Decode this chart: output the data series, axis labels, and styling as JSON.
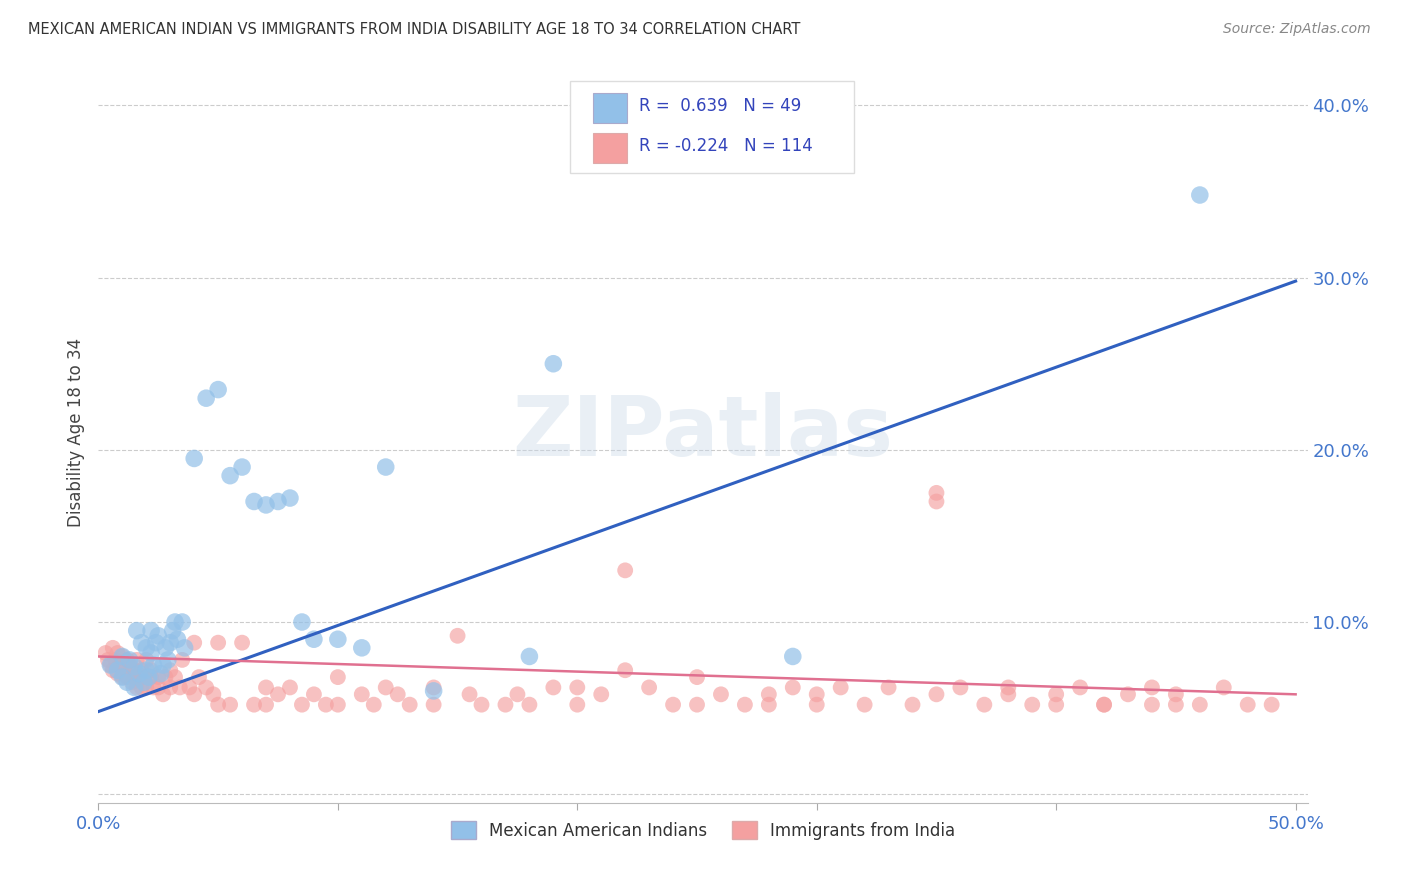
{
  "title": "MEXICAN AMERICAN INDIAN VS IMMIGRANTS FROM INDIA DISABILITY AGE 18 TO 34 CORRELATION CHART",
  "source": "Source: ZipAtlas.com",
  "ylabel": "Disability Age 18 to 34",
  "xlim": [
    0.0,
    0.505
  ],
  "ylim": [
    -0.005,
    0.425
  ],
  "xticks": [
    0.0,
    0.1,
    0.2,
    0.3,
    0.4,
    0.5
  ],
  "yticks": [
    0.0,
    0.1,
    0.2,
    0.3,
    0.4
  ],
  "ytick_labels_right": [
    "",
    "10.0%",
    "20.0%",
    "30.0%",
    "40.0%"
  ],
  "legend_labels": [
    "Mexican American Indians",
    "Immigrants from India"
  ],
  "blue_R": "0.639",
  "blue_N": "49",
  "pink_R": "-0.224",
  "pink_N": "114",
  "blue_color": "#92c0e8",
  "pink_color": "#f4a0a0",
  "blue_line_color": "#3060c0",
  "pink_line_color": "#e07090",
  "watermark": "ZIPatlas",
  "background_color": "#ffffff",
  "grid_color": "#cccccc",
  "blue_scatter": [
    [
      0.005,
      0.075
    ],
    [
      0.008,
      0.072
    ],
    [
      0.01,
      0.068
    ],
    [
      0.01,
      0.08
    ],
    [
      0.012,
      0.065
    ],
    [
      0.013,
      0.078
    ],
    [
      0.015,
      0.062
    ],
    [
      0.015,
      0.074
    ],
    [
      0.016,
      0.095
    ],
    [
      0.017,
      0.07
    ],
    [
      0.018,
      0.088
    ],
    [
      0.019,
      0.065
    ],
    [
      0.02,
      0.085
    ],
    [
      0.02,
      0.072
    ],
    [
      0.021,
      0.068
    ],
    [
      0.022,
      0.095
    ],
    [
      0.022,
      0.082
    ],
    [
      0.023,
      0.075
    ],
    [
      0.024,
      0.088
    ],
    [
      0.025,
      0.092
    ],
    [
      0.026,
      0.07
    ],
    [
      0.027,
      0.075
    ],
    [
      0.028,
      0.085
    ],
    [
      0.029,
      0.078
    ],
    [
      0.03,
      0.088
    ],
    [
      0.031,
      0.095
    ],
    [
      0.032,
      0.1
    ],
    [
      0.033,
      0.09
    ],
    [
      0.035,
      0.1
    ],
    [
      0.036,
      0.085
    ],
    [
      0.04,
      0.195
    ],
    [
      0.045,
      0.23
    ],
    [
      0.05,
      0.235
    ],
    [
      0.055,
      0.185
    ],
    [
      0.06,
      0.19
    ],
    [
      0.065,
      0.17
    ],
    [
      0.07,
      0.168
    ],
    [
      0.075,
      0.17
    ],
    [
      0.08,
      0.172
    ],
    [
      0.085,
      0.1
    ],
    [
      0.09,
      0.09
    ],
    [
      0.1,
      0.09
    ],
    [
      0.11,
      0.085
    ],
    [
      0.12,
      0.19
    ],
    [
      0.14,
      0.06
    ],
    [
      0.18,
      0.08
    ],
    [
      0.19,
      0.25
    ],
    [
      0.29,
      0.08
    ],
    [
      0.46,
      0.348
    ]
  ],
  "pink_scatter": [
    [
      0.003,
      0.082
    ],
    [
      0.004,
      0.078
    ],
    [
      0.005,
      0.075
    ],
    [
      0.006,
      0.072
    ],
    [
      0.006,
      0.085
    ],
    [
      0.007,
      0.078
    ],
    [
      0.008,
      0.07
    ],
    [
      0.008,
      0.082
    ],
    [
      0.009,
      0.075
    ],
    [
      0.01,
      0.068
    ],
    [
      0.01,
      0.08
    ],
    [
      0.011,
      0.074
    ],
    [
      0.012,
      0.078
    ],
    [
      0.012,
      0.068
    ],
    [
      0.013,
      0.075
    ],
    [
      0.014,
      0.065
    ],
    [
      0.015,
      0.072
    ],
    [
      0.015,
      0.068
    ],
    [
      0.016,
      0.062
    ],
    [
      0.016,
      0.078
    ],
    [
      0.017,
      0.068
    ],
    [
      0.018,
      0.072
    ],
    [
      0.018,
      0.062
    ],
    [
      0.019,
      0.068
    ],
    [
      0.02,
      0.062
    ],
    [
      0.02,
      0.078
    ],
    [
      0.022,
      0.072
    ],
    [
      0.022,
      0.068
    ],
    [
      0.023,
      0.062
    ],
    [
      0.025,
      0.068
    ],
    [
      0.025,
      0.062
    ],
    [
      0.027,
      0.058
    ],
    [
      0.028,
      0.068
    ],
    [
      0.03,
      0.062
    ],
    [
      0.03,
      0.072
    ],
    [
      0.032,
      0.068
    ],
    [
      0.034,
      0.062
    ],
    [
      0.035,
      0.078
    ],
    [
      0.038,
      0.062
    ],
    [
      0.04,
      0.088
    ],
    [
      0.04,
      0.058
    ],
    [
      0.042,
      0.068
    ],
    [
      0.045,
      0.062
    ],
    [
      0.048,
      0.058
    ],
    [
      0.05,
      0.088
    ],
    [
      0.05,
      0.052
    ],
    [
      0.055,
      0.052
    ],
    [
      0.06,
      0.088
    ],
    [
      0.065,
      0.052
    ],
    [
      0.07,
      0.062
    ],
    [
      0.07,
      0.052
    ],
    [
      0.075,
      0.058
    ],
    [
      0.08,
      0.062
    ],
    [
      0.085,
      0.052
    ],
    [
      0.09,
      0.058
    ],
    [
      0.095,
      0.052
    ],
    [
      0.1,
      0.068
    ],
    [
      0.1,
      0.052
    ],
    [
      0.11,
      0.058
    ],
    [
      0.115,
      0.052
    ],
    [
      0.12,
      0.062
    ],
    [
      0.125,
      0.058
    ],
    [
      0.13,
      0.052
    ],
    [
      0.14,
      0.052
    ],
    [
      0.14,
      0.062
    ],
    [
      0.155,
      0.058
    ],
    [
      0.16,
      0.052
    ],
    [
      0.17,
      0.052
    ],
    [
      0.175,
      0.058
    ],
    [
      0.18,
      0.052
    ],
    [
      0.19,
      0.062
    ],
    [
      0.2,
      0.062
    ],
    [
      0.2,
      0.052
    ],
    [
      0.21,
      0.058
    ],
    [
      0.22,
      0.072
    ],
    [
      0.23,
      0.062
    ],
    [
      0.24,
      0.052
    ],
    [
      0.25,
      0.052
    ],
    [
      0.25,
      0.068
    ],
    [
      0.26,
      0.058
    ],
    [
      0.27,
      0.052
    ],
    [
      0.28,
      0.058
    ],
    [
      0.28,
      0.052
    ],
    [
      0.29,
      0.062
    ],
    [
      0.3,
      0.052
    ],
    [
      0.3,
      0.058
    ],
    [
      0.31,
      0.062
    ],
    [
      0.32,
      0.052
    ],
    [
      0.33,
      0.062
    ],
    [
      0.34,
      0.052
    ],
    [
      0.35,
      0.058
    ],
    [
      0.36,
      0.062
    ],
    [
      0.37,
      0.052
    ],
    [
      0.38,
      0.058
    ],
    [
      0.38,
      0.062
    ],
    [
      0.39,
      0.052
    ],
    [
      0.4,
      0.058
    ],
    [
      0.4,
      0.052
    ],
    [
      0.41,
      0.062
    ],
    [
      0.42,
      0.052
    ],
    [
      0.43,
      0.058
    ],
    [
      0.44,
      0.052
    ],
    [
      0.44,
      0.062
    ],
    [
      0.45,
      0.052
    ],
    [
      0.45,
      0.058
    ],
    [
      0.46,
      0.052
    ],
    [
      0.47,
      0.062
    ],
    [
      0.15,
      0.092
    ],
    [
      0.22,
      0.13
    ],
    [
      0.35,
      0.17
    ],
    [
      0.35,
      0.175
    ],
    [
      0.42,
      0.052
    ],
    [
      0.48,
      0.052
    ],
    [
      0.49,
      0.052
    ]
  ],
  "blue_line_x": [
    0.0,
    0.5
  ],
  "blue_line_y": [
    0.048,
    0.298
  ],
  "pink_line_x": [
    0.0,
    0.5
  ],
  "pink_line_y": [
    0.08,
    0.058
  ]
}
